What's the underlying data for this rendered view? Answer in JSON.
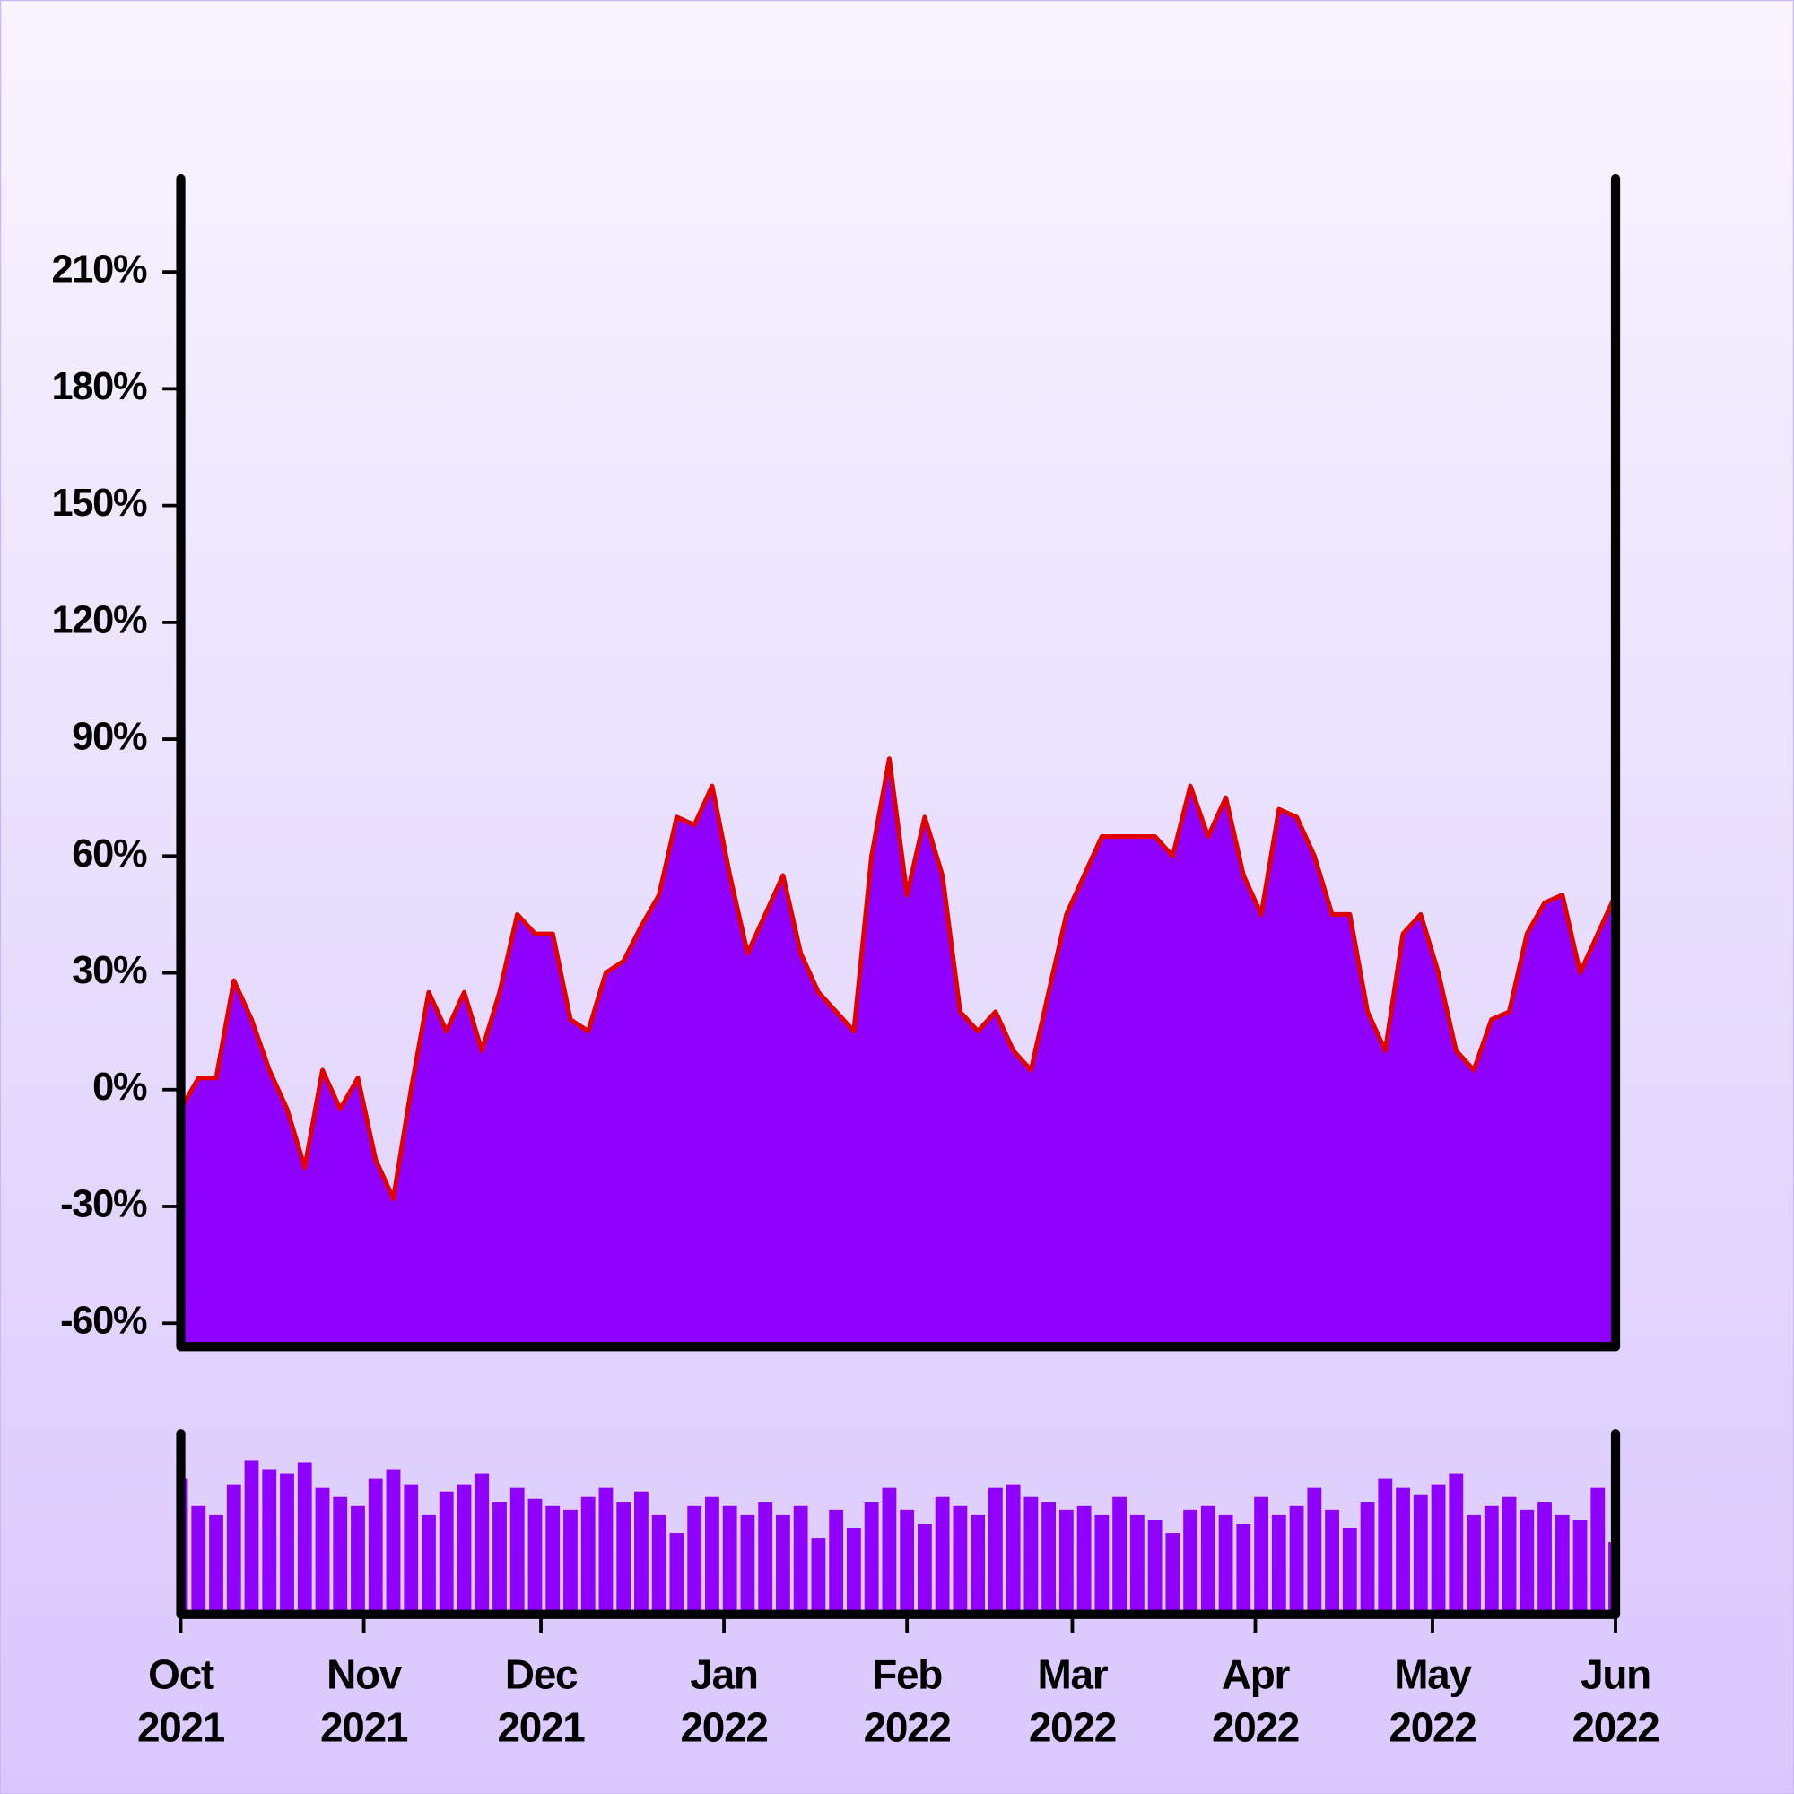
{
  "chart_data": [
    {
      "type": "area",
      "x": [
        0,
        3,
        6,
        9,
        12,
        15,
        18,
        21,
        24,
        27,
        30,
        33,
        36,
        39,
        42,
        45,
        48,
        51,
        54,
        57,
        60,
        63,
        66,
        69,
        72,
        75,
        78,
        81,
        84,
        87,
        90,
        93,
        96,
        99,
        102,
        105,
        108,
        111,
        114,
        117,
        120,
        123,
        126,
        129,
        132,
        135,
        138,
        141,
        144,
        147,
        150,
        153,
        156,
        159,
        162,
        165,
        168,
        171,
        174,
        177,
        180,
        183,
        186,
        189,
        192,
        195,
        198,
        201,
        204,
        207,
        210,
        213,
        216,
        219,
        222,
        225,
        228,
        231,
        234,
        237,
        240,
        243
      ],
      "values": [
        -5,
        3,
        3,
        28,
        18,
        5,
        -5,
        -20,
        5,
        -5,
        3,
        -18,
        -28,
        0,
        25,
        15,
        25,
        10,
        25,
        45,
        40,
        40,
        18,
        15,
        30,
        33,
        42,
        50,
        70,
        68,
        78,
        55,
        35,
        45,
        55,
        35,
        25,
        20,
        15,
        60,
        85,
        50,
        70,
        55,
        20,
        15,
        20,
        10,
        5,
        25,
        45,
        55,
        65,
        65,
        65,
        65,
        60,
        78,
        65,
        75,
        55,
        45,
        72,
        70,
        60,
        45,
        45,
        20,
        10,
        40,
        45,
        30,
        10,
        5,
        18,
        20,
        40,
        48,
        50,
        30,
        40,
        50
      ],
      "color": "#9000ff",
      "line_color": "#e00000",
      "xlim": [
        0,
        243
      ],
      "xticks": [
        {
          "value": 0,
          "label": "Oct\n2021"
        },
        {
          "value": 31,
          "label": "Nov\n2021"
        },
        {
          "value": 61,
          "label": "Dec\n2021"
        },
        {
          "value": 92,
          "label": "Jan\n2022"
        },
        {
          "value": 123,
          "label": "Feb\n2022"
        },
        {
          "value": 151,
          "label": "Mar\n2022"
        },
        {
          "value": 182,
          "label": "Apr\n2022"
        },
        {
          "value": 212,
          "label": "May\n2022"
        },
        {
          "value": 243,
          "label": "Jun\n2022"
        }
      ],
      "ylim": [
        -66,
        234
      ],
      "yticks": [
        {
          "value": -60,
          "label": "-60%"
        },
        {
          "value": -30,
          "label": "-30%"
        },
        {
          "value": 0,
          "label": "0%"
        },
        {
          "value": 30,
          "label": "30%"
        },
        {
          "value": 60,
          "label": "60%"
        },
        {
          "value": 90,
          "label": "90%"
        },
        {
          "value": 120,
          "label": "120%"
        },
        {
          "value": 150,
          "label": "150%"
        },
        {
          "value": 180,
          "label": "180%"
        },
        {
          "value": 210,
          "label": "210%"
        }
      ]
    },
    {
      "type": "bar",
      "x": [
        0,
        3,
        6,
        9,
        12,
        15,
        18,
        21,
        24,
        27,
        30,
        33,
        36,
        39,
        42,
        45,
        48,
        51,
        54,
        57,
        60,
        63,
        66,
        69,
        72,
        75,
        78,
        81,
        84,
        87,
        90,
        93,
        96,
        99,
        102,
        105,
        108,
        111,
        114,
        117,
        120,
        123,
        126,
        129,
        132,
        135,
        138,
        141,
        144,
        147,
        150,
        153,
        156,
        159,
        162,
        165,
        168,
        171,
        174,
        177,
        180,
        183,
        186,
        189,
        192,
        195,
        198,
        201,
        204,
        207,
        210,
        213,
        216,
        219,
        222,
        225,
        228,
        231,
        234,
        237,
        240,
        243
      ],
      "values": [
        75,
        60,
        55,
        72,
        85,
        80,
        78,
        84,
        70,
        65,
        60,
        75,
        80,
        72,
        55,
        68,
        72,
        78,
        62,
        70,
        64,
        60,
        58,
        65,
        70,
        62,
        68,
        55,
        45,
        60,
        65,
        60,
        55,
        62,
        55,
        60,
        42,
        58,
        48,
        62,
        70,
        58,
        50,
        65,
        60,
        55,
        70,
        72,
        65,
        62,
        58,
        60,
        55,
        65,
        55,
        52,
        45,
        58,
        60,
        55,
        50,
        65,
        55,
        60,
        70,
        58,
        48,
        62,
        75,
        70,
        66,
        72,
        78,
        55,
        60,
        65,
        58,
        62,
        55,
        52,
        70,
        40
      ],
      "color": "#9000ff",
      "xlim": [
        0,
        243
      ],
      "ylim": [
        0,
        100
      ]
    }
  ]
}
